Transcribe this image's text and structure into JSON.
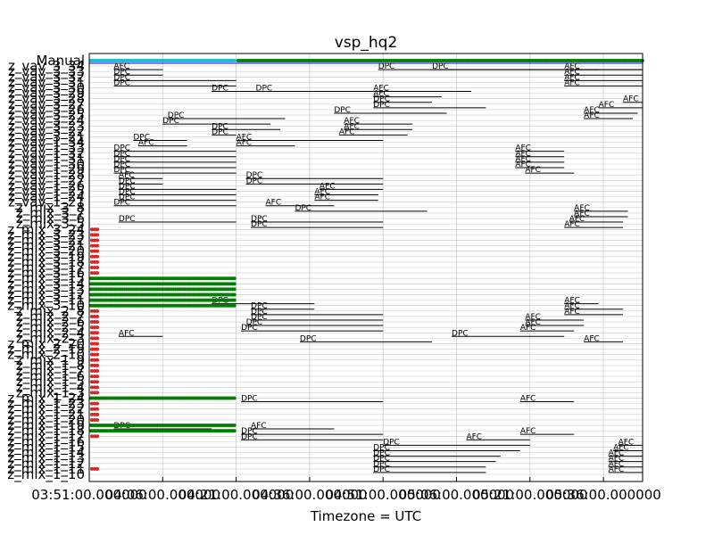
{
  "chart_data": {
    "type": "scatter",
    "title": "vsp_hq2",
    "xlabel": "Timezone = UTC",
    "ylabel": "",
    "x_tick_labels": [
      "03:51:00.000000",
      "04:06:00.000000",
      "04:21:00.000000",
      "04:36:00.000000",
      "04:51:00.000000",
      "05:06:00.000000",
      "05:21:00.000000",
      "05:36:00.000000"
    ],
    "xlim": [
      "03:51:00",
      "05:44:00"
    ],
    "grid": true,
    "rows": [
      {
        "label": "Manual"
      },
      {
        "label": "z_vav_3_34"
      },
      {
        "label": "z_vav_3_33"
      },
      {
        "label": "z_vav_3_32"
      },
      {
        "label": "z_vav_3_31"
      },
      {
        "label": "z_vav_3_30"
      },
      {
        "label": "z_vav_3_29"
      },
      {
        "label": "z_vav_3_28"
      },
      {
        "label": "z_vav_3_27"
      },
      {
        "label": "z_vav_3_26"
      },
      {
        "label": "z_vav_3_25"
      },
      {
        "label": "z_vav_3_24"
      },
      {
        "label": "z_vav_3_23"
      },
      {
        "label": "z_vav_3_22"
      },
      {
        "label": "z_vav_3_21"
      },
      {
        "label": "z_vav_1_34"
      },
      {
        "label": "z_vav_1_33"
      },
      {
        "label": "z_vav_1_32"
      },
      {
        "label": "z_vav_1_31"
      },
      {
        "label": "z_vav_1_30"
      },
      {
        "label": "z_vav_1_29"
      },
      {
        "label": "z_vav_1_28"
      },
      {
        "label": "z_vav_1_27"
      },
      {
        "label": "z_vav_1_26"
      },
      {
        "label": "z_vav_1_25"
      },
      {
        "label": "z_vav_1_24"
      },
      {
        "label": "z_vav_1_21"
      },
      {
        "label": "z_mix_3_8"
      },
      {
        "label": "z_mix_3_7"
      },
      {
        "label": "z_mix_3_6"
      },
      {
        "label": "z_mix_3_5"
      },
      {
        "label": "z_mix_3_24"
      },
      {
        "label": "z_mix_3_23"
      },
      {
        "label": "z_mix_3_22"
      },
      {
        "label": "z_mix_3_21"
      },
      {
        "label": "z_mix_3_20"
      },
      {
        "label": "z_mix_3_19"
      },
      {
        "label": "z_mix_3_18"
      },
      {
        "label": "z_mix_3_17"
      },
      {
        "label": "z_mix_3_16"
      },
      {
        "label": "z_mix_3_15"
      },
      {
        "label": "z_mix_3_14"
      },
      {
        "label": "z_mix_3_13"
      },
      {
        "label": "z_mix_3_12"
      },
      {
        "label": "z_mix_3_11"
      },
      {
        "label": "z_mix_3_10"
      },
      {
        "label": "z_mix_2_8"
      },
      {
        "label": "z_mix_2_7"
      },
      {
        "label": "z_mix_2_6"
      },
      {
        "label": "z_mix_2_5"
      },
      {
        "label": "z_mix_2_4"
      },
      {
        "label": "z_mix_2_3"
      },
      {
        "label": "z_mix_2_20"
      },
      {
        "label": "z_mix_2_19"
      },
      {
        "label": "z_mix_2_10"
      },
      {
        "label": "z_mix_1_9"
      },
      {
        "label": "z_mix_1_8"
      },
      {
        "label": "z_mix_1_7"
      },
      {
        "label": "z_mix_1_6"
      },
      {
        "label": "z_mix_1_5"
      },
      {
        "label": "z_mix_1_4"
      },
      {
        "label": "z_mix_1_3"
      },
      {
        "label": "z_mix_1_24"
      },
      {
        "label": "z_mix_1_23"
      },
      {
        "label": "z_mix_1_22"
      },
      {
        "label": "z_mix_1_21"
      },
      {
        "label": "z_mix_1_20"
      },
      {
        "label": "z_mix_1_19"
      },
      {
        "label": "z_mix_1_18"
      },
      {
        "label": "z_mix_1_17"
      },
      {
        "label": "z_mix_1_16"
      },
      {
        "label": "z_mix_1_15"
      },
      {
        "label": "z_mix_1_14"
      },
      {
        "label": "z_mix_1_13"
      },
      {
        "label": "z_mix_1_12"
      },
      {
        "label": "z_mix_1_11"
      },
      {
        "label": "z_mix_1_10"
      }
    ],
    "lines": [
      {
        "row": 1,
        "start": "03:56",
        "end": "04:06",
        "tag": "AFC"
      },
      {
        "row": 1,
        "start": "05:28",
        "end": "05:44",
        "tag": "AFC"
      },
      {
        "row": 1,
        "start": "04:50",
        "end": "05:35",
        "tag": "DPC"
      },
      {
        "row": 1,
        "start": "05:01",
        "end": "05:44",
        "tag": "DPC"
      },
      {
        "row": 2,
        "start": "03:56",
        "end": "04:06",
        "tag": "DPC"
      },
      {
        "row": 2,
        "start": "05:28",
        "end": "05:44",
        "tag": "AFC"
      },
      {
        "row": 3,
        "start": "03:56",
        "end": "04:21",
        "tag": "DPC"
      },
      {
        "row": 3,
        "start": "05:28",
        "end": "05:44",
        "tag": "AFC"
      },
      {
        "row": 4,
        "start": "03:56",
        "end": "04:21",
        "tag": "DPC"
      },
      {
        "row": 4,
        "start": "05:28",
        "end": "05:44",
        "tag": "AFC"
      },
      {
        "row": 5,
        "start": "04:16",
        "end": "04:41",
        "tag": "DPC"
      },
      {
        "row": 5,
        "start": "04:25",
        "end": "04:51",
        "tag": "DPC"
      },
      {
        "row": 5,
        "start": "04:49",
        "end": "05:09",
        "tag": "AFC"
      },
      {
        "row": 6,
        "start": "04:49",
        "end": "05:03",
        "tag": "AFC"
      },
      {
        "row": 7,
        "start": "04:49",
        "end": "05:01",
        "tag": "DPC"
      },
      {
        "row": 7,
        "start": "05:40",
        "end": "05:44",
        "tag": "AFC"
      },
      {
        "row": 8,
        "start": "04:49",
        "end": "05:12",
        "tag": "DPC"
      },
      {
        "row": 8,
        "start": "05:35",
        "end": "05:44",
        "tag": "AFC"
      },
      {
        "row": 9,
        "start": "04:41",
        "end": "05:04",
        "tag": "DPC"
      },
      {
        "row": 9,
        "start": "05:32",
        "end": "05:43",
        "tag": "AFC"
      },
      {
        "row": 10,
        "start": "04:07",
        "end": "04:31",
        "tag": "DPC"
      },
      {
        "row": 10,
        "start": "05:32",
        "end": "05:42",
        "tag": "AFC"
      },
      {
        "row": 11,
        "start": "04:06",
        "end": "04:28",
        "tag": "DPC"
      },
      {
        "row": 11,
        "start": "04:43",
        "end": "04:57",
        "tag": "AFC"
      },
      {
        "row": 12,
        "start": "04:16",
        "end": "04:30",
        "tag": "DPC"
      },
      {
        "row": 12,
        "start": "04:43",
        "end": "04:57",
        "tag": "AFC"
      },
      {
        "row": 13,
        "start": "04:16",
        "end": "04:21",
        "tag": "DPC"
      },
      {
        "row": 13,
        "start": "04:42",
        "end": "04:56",
        "tag": "AFC"
      },
      {
        "row": 14,
        "start": "04:00",
        "end": "04:11",
        "tag": "DPC"
      },
      {
        "row": 14,
        "start": "04:21",
        "end": "04:51",
        "tag": "AFC"
      },
      {
        "row": 15,
        "start": "04:01",
        "end": "04:11",
        "tag": "AFC"
      },
      {
        "row": 15,
        "start": "04:21",
        "end": "04:33",
        "tag": "AFC"
      },
      {
        "row": 16,
        "start": "03:56",
        "end": "04:21",
        "tag": "DPC"
      },
      {
        "row": 16,
        "start": "05:18",
        "end": "05:28",
        "tag": "AFC"
      },
      {
        "row": 17,
        "start": "03:56",
        "end": "04:21",
        "tag": "DPC"
      },
      {
        "row": 17,
        "start": "05:18",
        "end": "05:28",
        "tag": "AFC"
      },
      {
        "row": 18,
        "start": "03:56",
        "end": "04:21",
        "tag": "DPC"
      },
      {
        "row": 18,
        "start": "05:18",
        "end": "05:28",
        "tag": "AFC"
      },
      {
        "row": 19,
        "start": "03:56",
        "end": "04:21",
        "tag": "DPC"
      },
      {
        "row": 19,
        "start": "05:18",
        "end": "05:28",
        "tag": "AFC"
      },
      {
        "row": 20,
        "start": "03:56",
        "end": "04:21",
        "tag": "DPC"
      },
      {
        "row": 20,
        "start": "05:20",
        "end": "05:30",
        "tag": "AFC"
      },
      {
        "row": 21,
        "start": "03:57",
        "end": "04:06",
        "tag": "AFC"
      },
      {
        "row": 21,
        "start": "04:23",
        "end": "04:51",
        "tag": "DPC"
      },
      {
        "row": 22,
        "start": "03:57",
        "end": "04:06",
        "tag": "DPC"
      },
      {
        "row": 22,
        "start": "04:23",
        "end": "04:51",
        "tag": "DPC"
      },
      {
        "row": 23,
        "start": "03:57",
        "end": "04:21",
        "tag": "DPC"
      },
      {
        "row": 23,
        "start": "04:38",
        "end": "04:51",
        "tag": "AFC"
      },
      {
        "row": 24,
        "start": "03:57",
        "end": "04:21",
        "tag": "DPC"
      },
      {
        "row": 24,
        "start": "04:37",
        "end": "04:50",
        "tag": "AFC"
      },
      {
        "row": 25,
        "start": "03:57",
        "end": "04:21",
        "tag": "DPC"
      },
      {
        "row": 25,
        "start": "04:37",
        "end": "04:50",
        "tag": "AFC"
      },
      {
        "row": 26,
        "start": "03:56",
        "end": "04:21",
        "tag": "DPC"
      },
      {
        "row": 26,
        "start": "04:27",
        "end": "04:41",
        "tag": "AFC"
      },
      {
        "row": 27,
        "start": "04:33",
        "end": "05:00",
        "tag": "DPC"
      },
      {
        "row": 27,
        "start": "05:30",
        "end": "05:41",
        "tag": "AFC"
      },
      {
        "row": 28,
        "start": "05:30",
        "end": "05:41",
        "tag": "AFC"
      },
      {
        "row": 29,
        "start": "03:57",
        "end": "04:21",
        "tag": "DPC"
      },
      {
        "row": 29,
        "start": "04:24",
        "end": "04:51",
        "tag": "DPC"
      },
      {
        "row": 29,
        "start": "05:29",
        "end": "05:40",
        "tag": "AFC"
      },
      {
        "row": 30,
        "start": "04:24",
        "end": "04:51",
        "tag": "DPC"
      },
      {
        "row": 30,
        "start": "05:28",
        "end": "05:40",
        "tag": "AFC"
      },
      {
        "row": 44,
        "start": "04:16",
        "end": "04:37",
        "tag": "DPC"
      },
      {
        "row": 44,
        "start": "05:28",
        "end": "05:35",
        "tag": "AFC"
      },
      {
        "row": 45,
        "start": "04:24",
        "end": "04:37",
        "tag": "DPC"
      },
      {
        "row": 45,
        "start": "05:28",
        "end": "05:40",
        "tag": "AFC"
      },
      {
        "row": 46,
        "start": "04:24",
        "end": "04:51",
        "tag": "DPC"
      },
      {
        "row": 46,
        "start": "05:28",
        "end": "05:40",
        "tag": "AFC"
      },
      {
        "row": 47,
        "start": "04:24",
        "end": "04:51",
        "tag": "DPC"
      },
      {
        "row": 47,
        "start": "05:20",
        "end": "05:32",
        "tag": "AFC"
      },
      {
        "row": 48,
        "start": "04:23",
        "end": "04:51",
        "tag": "DPC"
      },
      {
        "row": 48,
        "start": "05:20",
        "end": "05:32",
        "tag": "AFC"
      },
      {
        "row": 49,
        "start": "04:22",
        "end": "04:51",
        "tag": "DPC"
      },
      {
        "row": 49,
        "start": "05:19",
        "end": "05:30",
        "tag": "AFC"
      },
      {
        "row": 50,
        "start": "03:57",
        "end": "04:06",
        "tag": "AFC"
      },
      {
        "row": 50,
        "start": "05:05",
        "end": "05:28",
        "tag": "DPC"
      },
      {
        "row": 51,
        "start": "04:34",
        "end": "05:01",
        "tag": "DPC"
      },
      {
        "row": 51,
        "start": "05:32",
        "end": "05:40",
        "tag": "AFC"
      },
      {
        "row": 62,
        "start": "04:22",
        "end": "04:51",
        "tag": "DPC"
      },
      {
        "row": 62,
        "start": "05:19",
        "end": "05:30",
        "tag": "AFC"
      },
      {
        "row": 67,
        "start": "03:56",
        "end": "04:16",
        "tag": "DPC"
      },
      {
        "row": 67,
        "start": "04:24",
        "end": "04:41",
        "tag": "AFC"
      },
      {
        "row": 68,
        "start": "04:22",
        "end": "04:51",
        "tag": "DPC"
      },
      {
        "row": 68,
        "start": "05:19",
        "end": "05:30",
        "tag": "AFC"
      },
      {
        "row": 69,
        "start": "04:22",
        "end": "04:51",
        "tag": "DPC"
      },
      {
        "row": 69,
        "start": "05:08",
        "end": "05:21",
        "tag": "AFC"
      },
      {
        "row": 70,
        "start": "04:51",
        "end": "05:21",
        "tag": "DPC"
      },
      {
        "row": 70,
        "start": "05:39",
        "end": "05:44",
        "tag": "AFC"
      },
      {
        "row": 71,
        "start": "04:49",
        "end": "05:19",
        "tag": "DPC"
      },
      {
        "row": 71,
        "start": "05:38",
        "end": "05:44",
        "tag": "AFC"
      },
      {
        "row": 72,
        "start": "04:49",
        "end": "05:15",
        "tag": "DPC"
      },
      {
        "row": 72,
        "start": "05:37",
        "end": "05:44",
        "tag": "AFC"
      },
      {
        "row": 73,
        "start": "04:49",
        "end": "05:14",
        "tag": "DPC"
      },
      {
        "row": 73,
        "start": "05:37",
        "end": "05:44",
        "tag": "AFC"
      },
      {
        "row": 74,
        "start": "04:49",
        "end": "05:12",
        "tag": "DPC"
      },
      {
        "row": 74,
        "start": "05:37",
        "end": "05:44",
        "tag": "AFC"
      },
      {
        "row": 75,
        "start": "04:49",
        "end": "05:12",
        "tag": "DPC"
      },
      {
        "row": 75,
        "start": "05:37",
        "end": "05:44",
        "tag": "AFC"
      }
    ],
    "point_runs": [
      {
        "row": 0,
        "start": "03:51",
        "end": "04:21",
        "color": "#17becf"
      },
      {
        "row": 0,
        "start": "04:21",
        "end": "05:44",
        "color": "#008000"
      },
      {
        "row": 40,
        "start": "03:51",
        "end": "04:21",
        "color": "#008000"
      },
      {
        "row": 41,
        "start": "03:51",
        "end": "04:21",
        "color": "#008000"
      },
      {
        "row": 42,
        "start": "03:51",
        "end": "04:21",
        "color": "#008000"
      },
      {
        "row": 43,
        "start": "03:51",
        "end": "04:21",
        "color": "#008000"
      },
      {
        "row": 44,
        "start": "03:51",
        "end": "04:21",
        "color": "#008000"
      },
      {
        "row": 45,
        "start": "03:51",
        "end": "04:21",
        "color": "#008000"
      },
      {
        "row": 62,
        "start": "03:51",
        "end": "04:21",
        "color": "#008000"
      },
      {
        "row": 67,
        "start": "03:51",
        "end": "04:21",
        "color": "#008000"
      },
      {
        "row": 68,
        "start": "03:51",
        "end": "04:21",
        "color": "#008000"
      }
    ],
    "red_point_rows": [
      31,
      32,
      33,
      34,
      35,
      36,
      37,
      38,
      39,
      46,
      47,
      48,
      49,
      50,
      51,
      52,
      53,
      54,
      55,
      56,
      57,
      58,
      59,
      60,
      61,
      63,
      64,
      65,
      66,
      69,
      75
    ],
    "colors": {
      "line": "#000000",
      "axis": "#000000",
      "grid": "#cccccc",
      "manual_line": "#0000ff"
    }
  }
}
